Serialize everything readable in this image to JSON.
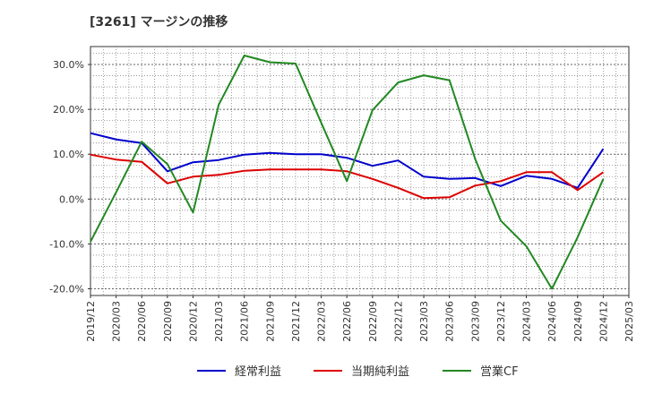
{
  "chart_data": {
    "type": "line",
    "title": "[3261]  マージンの推移",
    "xlabel": "",
    "ylabel": "",
    "x": [
      "2019/12",
      "2020/03",
      "2020/06",
      "2020/09",
      "2020/12",
      "2021/03",
      "2021/06",
      "2021/09",
      "2021/12",
      "2022/03",
      "2022/06",
      "2022/09",
      "2022/12",
      "2023/03",
      "2023/06",
      "2023/09",
      "2023/12",
      "2024/03",
      "2024/06",
      "2024/09",
      "2024/12"
    ],
    "x_ticks": [
      "2019/12",
      "2020/03",
      "2020/06",
      "2020/09",
      "2020/12",
      "2021/03",
      "2021/06",
      "2021/09",
      "2021/12",
      "2022/03",
      "2022/06",
      "2022/09",
      "2022/12",
      "2023/03",
      "2023/06",
      "2023/09",
      "2023/12",
      "2024/03",
      "2024/06",
      "2024/09",
      "2024/12",
      "2025/03"
    ],
    "y_ticks": [
      30,
      20,
      10,
      0,
      -10,
      -20
    ],
    "y_tick_labels": [
      "30.0%",
      "20.0%",
      "10.0%",
      "0.0%",
      "-10.0%",
      "-20.0%"
    ],
    "ylim": [
      -21.5,
      34
    ],
    "grid": true,
    "legend_position": "bottom",
    "series": [
      {
        "name": "経常利益",
        "color": "#0000cc",
        "values": [
          14.7,
          13.3,
          12.5,
          6.2,
          8.2,
          8.7,
          9.9,
          10.3,
          10.0,
          10.0,
          9.2,
          7.4,
          8.6,
          5.0,
          4.5,
          4.7,
          2.9,
          5.2,
          4.5,
          2.5,
          11.2
        ]
      },
      {
        "name": "当期純利益",
        "color": "#dd0000",
        "values": [
          9.9,
          8.8,
          8.3,
          3.5,
          5.0,
          5.4,
          6.3,
          6.6,
          6.6,
          6.6,
          6.2,
          4.5,
          2.5,
          0.2,
          0.4,
          3.0,
          4.0,
          6.0,
          6.0,
          2.0,
          6.0
        ]
      },
      {
        "name": "営業CF",
        "color": "#228822",
        "values": [
          -9.5,
          1.5,
          12.8,
          7.8,
          -3.0,
          21.0,
          32.0,
          30.5,
          30.2,
          17.0,
          4.0,
          19.8,
          26.0,
          27.6,
          26.5,
          9.0,
          -4.8,
          -10.5,
          -20.0,
          -8.5,
          4.5
        ]
      }
    ]
  }
}
